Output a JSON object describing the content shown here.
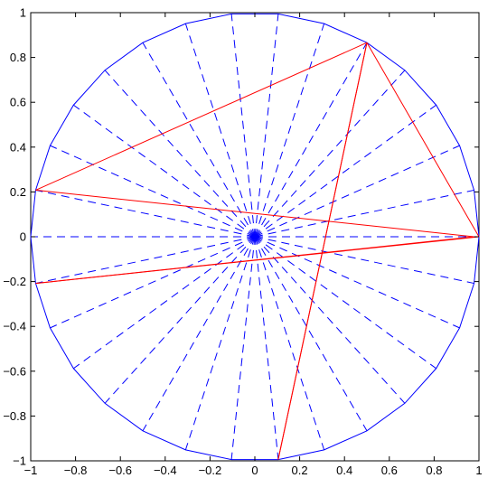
{
  "chart_data": {
    "type": "line",
    "title": "",
    "xlabel": "",
    "ylabel": "",
    "xlim": [
      -1,
      1
    ],
    "ylim": [
      -1,
      1
    ],
    "grid": false,
    "xticks": [
      "−1",
      "−0.8",
      "−0.6",
      "−0.4",
      "−0.2",
      "0",
      "0.2",
      "0.4",
      "0.6",
      "0.8",
      "1"
    ],
    "yticks": [
      "1",
      "0.8",
      "0.6",
      "0.4",
      "0.2",
      "0",
      "−0.2",
      "−0.4",
      "−0.6",
      "−0.8",
      "−1"
    ],
    "series": [
      {
        "kind": "unit-circle-polygon",
        "vertices": 30,
        "style": "solid",
        "color": "#0000ff"
      },
      {
        "kind": "spokes-from-origin",
        "count": 30,
        "style": "dashed",
        "color": "#0000ff"
      },
      {
        "kind": "polyline",
        "style": "solid",
        "color": "#ff0000",
        "x": [
          1,
          0.5,
          0.104,
          0.5,
          -0.978,
          0.978,
          -0.978,
          1
        ],
        "y": [
          0,
          0.866,
          -0.995,
          0.866,
          0.208,
          0,
          -0.208,
          0
        ]
      }
    ]
  }
}
